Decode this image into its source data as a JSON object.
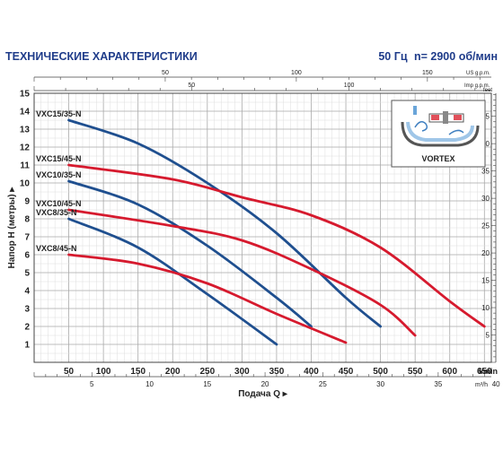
{
  "header": {
    "title": "ТЕХНИЧЕСКИЕ ХАРАКТЕРИСТИКИ",
    "frequency": "50 Гц",
    "speed": "n= 2900 об/мин"
  },
  "colors": {
    "blue_series": "#1f4f8f",
    "red_series": "#d61a2e",
    "header": "#1f3c8a",
    "grid": "#b8b8b8"
  },
  "inset": {
    "label": "VORTEX",
    "icon": "vortex-pump-diagram-icon"
  },
  "chart_data": {
    "type": "line",
    "xlabel": "Подача Q",
    "ylabel": "Напор H (метры)",
    "x_unit": "l/min",
    "x_secondary_unit": "m³/h",
    "x_top_unit_1": "US g.p.m.",
    "x_top_unit_2": "Imp g.p.m.",
    "y_right_unit": "feet",
    "xlim": [
      0,
      660
    ],
    "ylim": [
      0,
      15
    ],
    "x_ticks": [
      "50",
      "100",
      "150",
      "200",
      "250",
      "300",
      "350",
      "400",
      "450",
      "500",
      "550",
      "600",
      "650"
    ],
    "y_ticks": [
      "1",
      "2",
      "3",
      "4",
      "5",
      "6",
      "7",
      "8",
      "9",
      "10",
      "11",
      "12",
      "13",
      "14",
      "15"
    ],
    "m3h_ticks": [
      "5",
      "10",
      "15",
      "20",
      "25",
      "30",
      "35",
      "40"
    ],
    "usgpm_ticks": [
      "50",
      "100",
      "150"
    ],
    "impgpm_ticks": [
      "50",
      "100"
    ],
    "feet_ticks": [
      "5",
      "10",
      "15",
      "20",
      "25",
      "30",
      "35",
      "40",
      "45"
    ],
    "grid": true,
    "series": [
      {
        "name": "VXC15/35-N",
        "color": "blue",
        "x": [
          50,
          150,
          250,
          350,
          450,
          500
        ],
        "y": [
          13.5,
          12.2,
          10.0,
          7.2,
          3.6,
          2.0
        ]
      },
      {
        "name": "VXC15/45-N",
        "color": "red",
        "x": [
          50,
          200,
          300,
          400,
          500,
          600,
          650
        ],
        "y": [
          11.0,
          10.2,
          9.2,
          8.2,
          6.4,
          3.4,
          2.0
        ]
      },
      {
        "name": "VXC10/35-N",
        "color": "blue",
        "x": [
          50,
          150,
          250,
          350,
          400
        ],
        "y": [
          10.1,
          8.8,
          6.5,
          3.6,
          2.0
        ]
      },
      {
        "name": "VXC10/45-N",
        "color": "red",
        "x": [
          50,
          200,
          300,
          400,
          500,
          550
        ],
        "y": [
          8.5,
          7.6,
          6.8,
          5.2,
          3.2,
          1.5
        ]
      },
      {
        "name": "VXC8/35-N",
        "color": "blue",
        "x": [
          50,
          150,
          250,
          350
        ],
        "y": [
          8.0,
          6.4,
          3.8,
          1.0
        ]
      },
      {
        "name": "VXC8/45-N",
        "color": "red",
        "x": [
          50,
          150,
          250,
          350,
          450
        ],
        "y": [
          6.0,
          5.5,
          4.4,
          2.7,
          1.1
        ]
      }
    ]
  }
}
